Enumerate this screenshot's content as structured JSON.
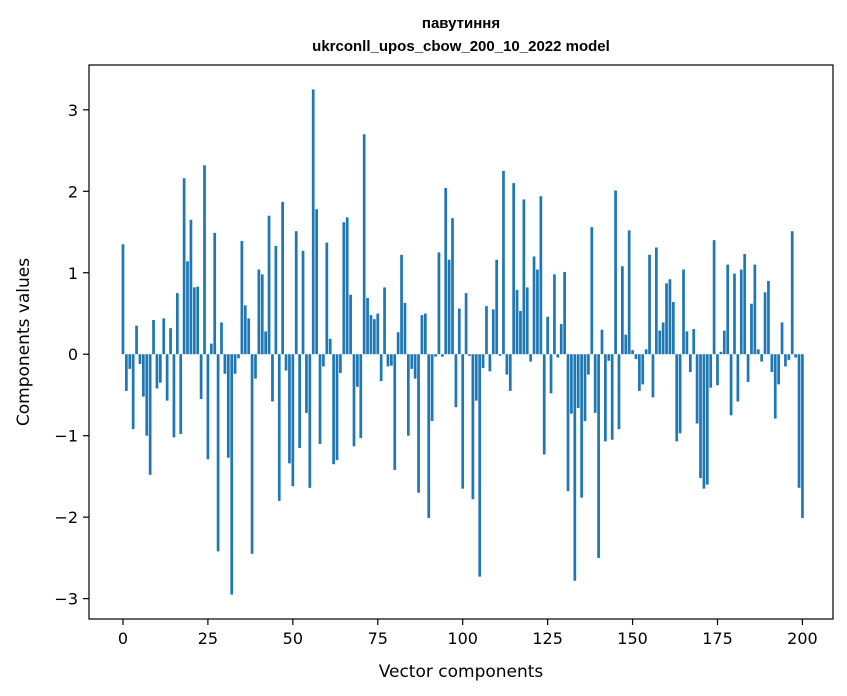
{
  "chart_data": {
    "type": "bar",
    "title": "павутиння",
    "subtitle": "ukrconll_upos_cbow_200_10_2022 model",
    "xlabel": "Vector components",
    "ylabel": "Components values",
    "xlim": [
      -10,
      209
    ],
    "ylim": [
      -3.25,
      3.55
    ],
    "xticks": [
      0,
      25,
      50,
      75,
      100,
      125,
      150,
      175,
      200
    ],
    "yticks": [
      -3,
      -2,
      -1,
      0,
      1,
      2,
      3
    ],
    "ytick_labels": [
      "−3",
      "−2",
      "−1",
      "0",
      "1",
      "2",
      "3"
    ],
    "bar_color": "#1f77b4",
    "series": [
      {
        "name": "павутиння",
        "values": [
          1.35,
          -0.45,
          -0.18,
          -0.92,
          0.35,
          -0.12,
          -0.52,
          -1.0,
          -1.48,
          0.42,
          -0.42,
          -0.35,
          0.44,
          -0.57,
          0.32,
          -1.02,
          0.75,
          -0.98,
          2.16,
          1.14,
          1.65,
          0.82,
          0.83,
          -0.55,
          2.32,
          -1.29,
          0.13,
          1.49,
          -2.42,
          0.39,
          -0.24,
          -1.27,
          -2.95,
          -0.24,
          -0.05,
          1.39,
          0.6,
          0.44,
          -2.45,
          -0.3,
          1.04,
          0.98,
          0.28,
          1.7,
          -0.58,
          1.33,
          -1.8,
          1.87,
          -0.2,
          -1.34,
          -1.62,
          1.51,
          -1.15,
          1.27,
          -0.72,
          -1.64,
          3.25,
          1.78,
          -1.1,
          -0.15,
          1.37,
          0.19,
          -1.35,
          -1.3,
          -0.23,
          1.62,
          1.68,
          0.73,
          -1.13,
          -0.4,
          -1.03,
          2.7,
          0.69,
          0.48,
          0.43,
          0.5,
          -0.33,
          0.82,
          -0.15,
          -0.14,
          -1.42,
          0.27,
          1.22,
          0.63,
          -1.0,
          -0.18,
          -0.3,
          -1.7,
          0.48,
          0.5,
          -2.01,
          -0.82,
          -0.03,
          1.25,
          -0.03,
          2.04,
          1.16,
          1.67,
          -0.65,
          0.56,
          -1.65,
          0.75,
          -0.02,
          -1.78,
          -0.57,
          -2.73,
          -0.17,
          0.59,
          -0.21,
          0.55,
          1.16,
          -0.02,
          2.25,
          -0.25,
          -0.45,
          2.1,
          0.79,
          0.53,
          1.9,
          0.82,
          -0.09,
          1.2,
          1.04,
          1.94,
          -1.23,
          0.46,
          -0.48,
          0.98,
          -0.04,
          0.37,
          1.01,
          -1.68,
          -0.73,
          -2.78,
          -0.66,
          -1.76,
          -0.82,
          -0.25,
          1.56,
          -0.72,
          -2.5,
          0.3,
          -1.07,
          -0.08,
          -1.05,
          2.01,
          -0.92,
          1.08,
          0.24,
          1.52,
          0.05,
          -0.06,
          -0.45,
          -0.37,
          0.06,
          1.22,
          -0.53,
          1.31,
          0.29,
          0.39,
          0.87,
          0.92,
          0.64,
          -1.07,
          -0.97,
          1.04,
          0.28,
          -0.22,
          0.31,
          -0.85,
          -1.52,
          -1.65,
          -1.6,
          -0.41,
          1.4,
          -0.38,
          0.03,
          0.29,
          1.1,
          -0.75,
          0.99,
          -0.58,
          1.04,
          1.23,
          -0.34,
          0.62,
          1.1,
          0.06,
          -0.09,
          0.76,
          0.9,
          -0.22,
          -0.79,
          -0.37,
          0.39,
          -0.15,
          -0.07,
          1.51,
          -0.04,
          -1.64,
          -2.01
        ]
      }
    ]
  }
}
